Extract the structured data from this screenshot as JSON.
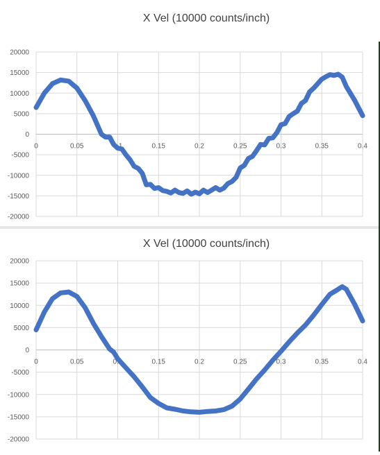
{
  "chart_data": [
    {
      "type": "line",
      "title": "X Vel (10000 counts/inch)",
      "xlabel": "",
      "ylabel": "",
      "xlim": [
        0,
        0.4
      ],
      "ylim": [
        -20000,
        20000
      ],
      "x_ticks": [
        "0",
        "0.05",
        "0.1",
        "0.15",
        "0.2",
        "0.25",
        "0.3",
        "0.35",
        "0.4"
      ],
      "y_ticks": [
        "20000",
        "15000",
        "10000",
        "5000",
        "0",
        "-5000",
        "-10000",
        "-15000",
        "-20000"
      ],
      "grid": true,
      "legend": "none",
      "line_color": "#4472c4",
      "series": [
        {
          "x": [
            0,
            0.01,
            0.02,
            0.03,
            0.04,
            0.05,
            0.06,
            0.07,
            0.08,
            0.085,
            0.09,
            0.095,
            0.1,
            0.105,
            0.11,
            0.115,
            0.12,
            0.125,
            0.13,
            0.135,
            0.14,
            0.145,
            0.15,
            0.155,
            0.16,
            0.165,
            0.17,
            0.175,
            0.18,
            0.185,
            0.19,
            0.195,
            0.2,
            0.205,
            0.21,
            0.215,
            0.22,
            0.225,
            0.23,
            0.235,
            0.24,
            0.245,
            0.25,
            0.255,
            0.26,
            0.265,
            0.27,
            0.275,
            0.28,
            0.285,
            0.29,
            0.295,
            0.3,
            0.305,
            0.31,
            0.315,
            0.32,
            0.325,
            0.33,
            0.335,
            0.34,
            0.345,
            0.35,
            0.355,
            0.36,
            0.365,
            0.37,
            0.375,
            0.38,
            0.39,
            0.4
          ],
          "y": [
            6500,
            10000,
            12300,
            13200,
            12900,
            11200,
            8200,
            4500,
            0,
            -700,
            -700,
            -2500,
            -3400,
            -3600,
            -5000,
            -6200,
            -7800,
            -8300,
            -9500,
            -12300,
            -12200,
            -13200,
            -13000,
            -13700,
            -13900,
            -14300,
            -13600,
            -14200,
            -14400,
            -13800,
            -14600,
            -14100,
            -14500,
            -13600,
            -14200,
            -13600,
            -13000,
            -13600,
            -13100,
            -12000,
            -11500,
            -10500,
            -8200,
            -7600,
            -5900,
            -5400,
            -4000,
            -2500,
            -2600,
            -1000,
            -900,
            400,
            2300,
            2600,
            4300,
            5000,
            5600,
            7500,
            8200,
            10300,
            11200,
            12300,
            13400,
            14000,
            14500,
            14300,
            14600,
            13900,
            11600,
            8300,
            4500
          ]
        }
      ]
    },
    {
      "type": "line",
      "title": "X Vel  (10000 counts/inch)",
      "xlabel": "",
      "ylabel": "",
      "xlim": [
        0,
        0.4
      ],
      "ylim": [
        -20000,
        20000
      ],
      "x_ticks": [
        "0",
        "0.05",
        "0.1",
        "0.15",
        "0.2",
        "0.25",
        "0.3",
        "0.35",
        "0.4"
      ],
      "y_ticks": [
        "20000",
        "15000",
        "10000",
        "5000",
        "0",
        "-5000",
        "-10000",
        "-15000",
        "-20000"
      ],
      "grid": true,
      "legend": "none",
      "line_color": "#4472c4",
      "series": [
        {
          "x": [
            0,
            0.01,
            0.02,
            0.03,
            0.04,
            0.05,
            0.06,
            0.07,
            0.08,
            0.09,
            0.095,
            0.1,
            0.105,
            0.11,
            0.12,
            0.13,
            0.14,
            0.15,
            0.16,
            0.17,
            0.18,
            0.19,
            0.2,
            0.21,
            0.22,
            0.23,
            0.24,
            0.25,
            0.26,
            0.27,
            0.28,
            0.29,
            0.3,
            0.31,
            0.32,
            0.33,
            0.34,
            0.35,
            0.36,
            0.37,
            0.375,
            0.38,
            0.39,
            0.4
          ],
          "y": [
            4500,
            8500,
            11500,
            12800,
            13000,
            12000,
            9500,
            6000,
            3000,
            200,
            -500,
            -2000,
            -3000,
            -4000,
            -6000,
            -8300,
            -10700,
            -12000,
            -13000,
            -13300,
            -13700,
            -13900,
            -14000,
            -13800,
            -13700,
            -13400,
            -12600,
            -11000,
            -8800,
            -6500,
            -4500,
            -2300,
            -300,
            1800,
            3800,
            5600,
            7800,
            10200,
            12500,
            13600,
            14200,
            13600,
            10300,
            6500
          ]
        }
      ]
    }
  ]
}
